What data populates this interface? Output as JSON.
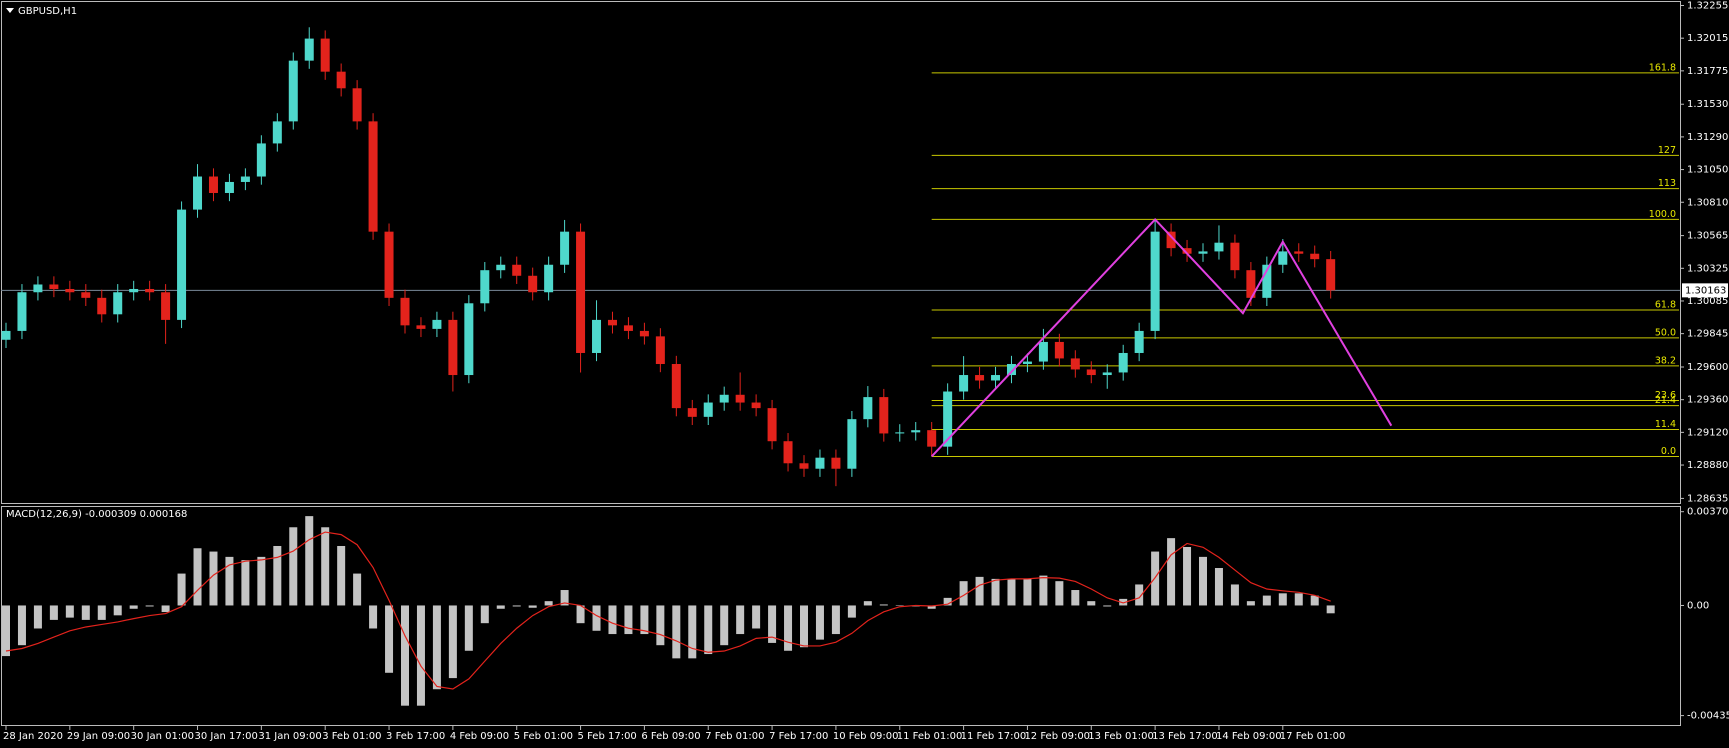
{
  "chart_data": [
    {
      "type": "candlestick",
      "title": "GBPUSD,H1",
      "categories": [
        "28 Jan 2020",
        null,
        null,
        null,
        "29 Jan 09:00",
        null,
        null,
        null,
        "30 Jan 01:00",
        null,
        null,
        null,
        "30 Jan 17:00",
        null,
        null,
        null,
        "31 Jan 09:00",
        null,
        null,
        null,
        "3 Feb 01:00",
        null,
        null,
        null,
        "3 Feb 17:00",
        null,
        null,
        null,
        "4 Feb 09:00",
        null,
        null,
        null,
        "5 Feb 01:00",
        null,
        null,
        null,
        "5 Feb 17:00",
        null,
        null,
        null,
        "6 Feb 09:00",
        null,
        null,
        null,
        "7 Feb 01:00",
        null,
        null,
        null,
        "7 Feb 17:00",
        null,
        null,
        null,
        "10 Feb 09:00",
        null,
        null,
        null,
        "11 Feb 01:00",
        null,
        null,
        null,
        "11 Feb 17:00",
        null,
        null,
        null,
        "12 Feb 09:00",
        null,
        null,
        null,
        "13 Feb 01:00",
        null,
        null,
        null,
        "13 Feb 17:00",
        null,
        null,
        null,
        "14 Feb 09:00",
        null,
        null,
        null,
        "17 Feb 01:00",
        null,
        null,
        null
      ],
      "open": [
        1.298,
        1.29865,
        1.30149,
        1.30206,
        1.30173,
        1.30149,
        1.30108,
        1.29987,
        1.30149,
        1.30173,
        1.30149,
        1.29946,
        1.30756,
        1.30999,
        1.30878,
        1.30959,
        1.30999,
        1.31242,
        1.31404,
        1.3185,
        1.32012,
        1.31769,
        1.31647,
        1.31404,
        1.30594,
        1.30108,
        1.29906,
        1.2988,
        1.29946,
        1.29541,
        1.30068,
        1.30311,
        1.30351,
        1.3027,
        1.30149,
        1.30351,
        1.30594,
        1.29703,
        1.29946,
        1.29906,
        1.29865,
        1.29825,
        1.29622,
        1.29298,
        1.29234,
        1.29339,
        1.29396,
        1.29339,
        1.29298,
        1.29055,
        1.28893,
        1.28853,
        1.28934,
        1.28853,
        1.29217,
        1.29379,
        1.29112,
        1.2912,
        1.29136,
        1.29015,
        1.2942,
        1.29541,
        1.29501,
        1.29541,
        1.29622,
        1.2964,
        1.29784,
        1.29663,
        1.29582,
        1.29541,
        1.2956,
        1.29703,
        1.29865,
        1.30594,
        1.30473,
        1.30432,
        1.30449,
        1.30513,
        1.30311,
        1.30108,
        1.30351,
        1.30449,
        1.30432,
        1.30392
      ],
      "high": [
        1.29925,
        1.30209,
        1.30266,
        1.30266,
        1.30233,
        1.30209,
        1.30168,
        1.30209,
        1.30233,
        1.30233,
        1.30209,
        1.30816,
        1.3109,
        1.31059,
        1.31019,
        1.31059,
        1.31302,
        1.31464,
        1.3191,
        1.32095,
        1.32072,
        1.31829,
        1.31707,
        1.31464,
        1.30654,
        1.30168,
        1.29966,
        1.30006,
        1.30006,
        1.30128,
        1.30371,
        1.30411,
        1.30411,
        1.3033,
        1.30411,
        1.3068,
        1.30654,
        1.3009,
        1.30006,
        1.29966,
        1.29925,
        1.29885,
        1.29682,
        1.29358,
        1.29399,
        1.29456,
        1.2956,
        1.29399,
        1.29358,
        1.29115,
        1.28953,
        1.28994,
        1.28994,
        1.29277,
        1.2946,
        1.29439,
        1.2918,
        1.29196,
        1.29196,
        1.2948,
        1.2968,
        1.29601,
        1.29601,
        1.29682,
        1.297,
        1.2988,
        1.29844,
        1.29723,
        1.29642,
        1.2962,
        1.29763,
        1.29925,
        1.30684,
        1.30654,
        1.30533,
        1.30509,
        1.3064,
        1.30573,
        1.30371,
        1.30411,
        1.3054,
        1.30509,
        1.30492,
        1.30452
      ],
      "low": [
        1.2974,
        1.29805,
        1.30089,
        1.30113,
        1.30089,
        1.30048,
        1.29927,
        1.29927,
        1.30089,
        1.30089,
        1.2977,
        1.29886,
        1.30696,
        1.30818,
        1.30818,
        1.30899,
        1.30939,
        1.31182,
        1.31344,
        1.3179,
        1.31709,
        1.31587,
        1.31344,
        1.30534,
        1.30048,
        1.29846,
        1.2982,
        1.2982,
        1.2942,
        1.29481,
        1.30008,
        1.30251,
        1.3021,
        1.30089,
        1.30089,
        1.30291,
        1.2956,
        1.29643,
        1.29846,
        1.29805,
        1.29765,
        1.29562,
        1.29238,
        1.29174,
        1.29174,
        1.29279,
        1.29279,
        1.29238,
        1.28995,
        1.28833,
        1.28793,
        1.28793,
        1.28725,
        1.28793,
        1.29157,
        1.29052,
        1.29052,
        1.2906,
        1.28943,
        1.28955,
        1.2936,
        1.29441,
        1.29441,
        1.29481,
        1.29562,
        1.2958,
        1.29603,
        1.29522,
        1.29481,
        1.2944,
        1.295,
        1.29643,
        1.29805,
        1.30413,
        1.30372,
        1.30372,
        1.30389,
        1.30251,
        1.30048,
        1.30048,
        1.30291,
        1.30372,
        1.30332,
        1.30103
      ],
      "close": [
        1.29865,
        1.30149,
        1.30206,
        1.30173,
        1.30149,
        1.30108,
        1.29987,
        1.30149,
        1.30173,
        1.30149,
        1.29946,
        1.30756,
        1.30999,
        1.30878,
        1.30959,
        1.30999,
        1.31242,
        1.31404,
        1.3185,
        1.32012,
        1.31769,
        1.31647,
        1.31404,
        1.30594,
        1.30108,
        1.29906,
        1.2988,
        1.29946,
        1.29541,
        1.30068,
        1.30311,
        1.30351,
        1.3027,
        1.30149,
        1.30351,
        1.30594,
        1.29703,
        1.29946,
        1.29906,
        1.29865,
        1.29825,
        1.29622,
        1.29298,
        1.29234,
        1.29339,
        1.29396,
        1.29339,
        1.29298,
        1.29055,
        1.28893,
        1.28853,
        1.28934,
        1.28853,
        1.29217,
        1.29379,
        1.29112,
        1.2912,
        1.29136,
        1.29015,
        1.2942,
        1.29541,
        1.29501,
        1.29541,
        1.29622,
        1.2964,
        1.29784,
        1.29663,
        1.29582,
        1.29541,
        1.2956,
        1.29703,
        1.29865,
        1.30594,
        1.30473,
        1.30432,
        1.30449,
        1.30513,
        1.30311,
        1.30108,
        1.30351,
        1.30449,
        1.30432,
        1.30392,
        1.30163
      ],
      "up_color": "#4fd8cc",
      "down_color": "#e3231c",
      "ylim": [
        1.28635,
        1.32255
      ],
      "yticks": [
        1.32255,
        1.32015,
        1.31775,
        {
          "value": 1.3153,
          "label": "1.31530"
        },
        {
          "value": 1.3129,
          "label": "1.31290"
        },
        {
          "value": 1.3105,
          "label": "1.31050"
        },
        {
          "value": 1.3081,
          "label": "1.30810"
        },
        1.30565,
        1.30325,
        1.30085,
        1.29845,
        {
          "value": 1.296,
          "label": "1.29600"
        },
        {
          "value": 1.2936,
          "label": "1.29360"
        },
        {
          "value": 1.2912,
          "label": "1.29120"
        },
        {
          "value": 1.2888,
          "label": "1.28880"
        },
        1.28635
      ],
      "current_price": 1.30163,
      "current_price_color": "#7a8a99",
      "fibonacci": {
        "color": "#c8c800",
        "x": 58,
        "levels": [
          {
            "label": "161.8",
            "price": 1.3176
          },
          {
            "label": "127",
            "price": 1.31154
          },
          {
            "label": "113",
            "price": 1.3091
          },
          {
            "label": "100.0",
            "price": 1.30684
          },
          {
            "label": "61.8",
            "price": 1.30019
          },
          {
            "label": "50.0",
            "price": 1.29814
          },
          {
            "label": "38.2",
            "price": 1.29608
          },
          {
            "label": "23.6",
            "price": 1.29354
          },
          {
            "label": "21.4",
            "price": 1.29316
          },
          {
            "label": "11.4",
            "price": 1.29141
          },
          {
            "label": "0.0",
            "price": 1.28943
          }
        ]
      },
      "pattern": {
        "color": "#e040e0",
        "x": [
          58,
          72,
          77.5,
          80,
          86.8
        ],
        "y": [
          1.28943,
          1.30684,
          1.29995,
          1.3052,
          1.29169
        ]
      }
    },
    {
      "type": "macd",
      "title": "MACD(12,26,9) -0.000309 0.000168",
      "histogram": {
        "color": "#c4c4c4",
        "values": [
          -0.002,
          -0.00157,
          -0.00091,
          -0.00057,
          -0.00048,
          -0.00057,
          -0.00057,
          -0.00039,
          -0.00013,
          -4e-05,
          -0.00026,
          0.00126,
          0.00226,
          0.00213,
          0.00192,
          0.00179,
          0.00192,
          0.00235,
          0.00309,
          0.00353,
          0.00309,
          0.00235,
          0.00126,
          -0.00091,
          -0.00266,
          -0.00396,
          -0.00396,
          -0.00331,
          -0.00287,
          -0.00179,
          -0.0007,
          -0.00013,
          -4e-05,
          -9e-05,
          0.00017,
          0.00061,
          -0.0007,
          -0.001,
          -0.00113,
          -0.00113,
          -0.00113,
          -0.00157,
          -0.00209,
          -0.00209,
          -0.00192,
          -0.00157,
          -0.00113,
          -0.00091,
          -0.00148,
          -0.00179,
          -0.00165,
          -0.00135,
          -0.00113,
          -0.00048,
          0.00017,
          4e-05,
          0,
          -4e-05,
          -0.00013,
          0.0003,
          0.00096,
          0.00113,
          0.00105,
          0.00105,
          0.00105,
          0.00118,
          0.00096,
          0.00061,
          0.00017,
          -4e-05,
          0.00026,
          0.00083,
          0.00213,
          0.00266,
          0.00231,
          0.00192,
          0.00148,
          0.00083,
          0.00017,
          0.00039,
          0.00048,
          0.00048,
          0.00039,
          -0.00031
        ]
      },
      "signal": {
        "color": "#e3231c",
        "values": [
          -0.0018,
          -0.0017,
          -0.0015,
          -0.00125,
          -0.001,
          -0.00085,
          -0.00075,
          -0.00065,
          -0.00052,
          -0.0004,
          -0.00032,
          -5e-05,
          0.0006,
          0.0012,
          0.0016,
          0.00175,
          0.0018,
          0.0019,
          0.00215,
          0.0026,
          0.0029,
          0.0028,
          0.0024,
          0.0015,
          0.0002,
          -0.0012,
          -0.0024,
          -0.0032,
          -0.0033,
          -0.0029,
          -0.0022,
          -0.0015,
          -0.0009,
          -0.0004,
          -5e-05,
          0.0001,
          0.0,
          -0.0004,
          -0.0007,
          -0.0009,
          -0.001,
          -0.00115,
          -0.0014,
          -0.0017,
          -0.00185,
          -0.0018,
          -0.0016,
          -0.0013,
          -0.00125,
          -0.00145,
          -0.0016,
          -0.0016,
          -0.00145,
          -0.0011,
          -0.0006,
          -0.00025,
          -5e-05,
          0.0,
          -2e-05,
          5e-05,
          0.0004,
          0.0008,
          0.001,
          0.00105,
          0.00105,
          0.0011,
          0.00108,
          0.00095,
          0.00065,
          0.0003,
          0.0001,
          0.0003,
          0.0011,
          0.002,
          0.00245,
          0.0023,
          0.0019,
          0.0014,
          0.0009,
          0.00065,
          0.00058,
          0.00052,
          0.0004,
          0.00017
        ]
      },
      "ylim": [
        -0.004352,
        0.003705
      ],
      "yticks": [
        0.003705,
        {
          "value": 0,
          "label": "0.00"
        },
        -0.004352
      ]
    }
  ]
}
